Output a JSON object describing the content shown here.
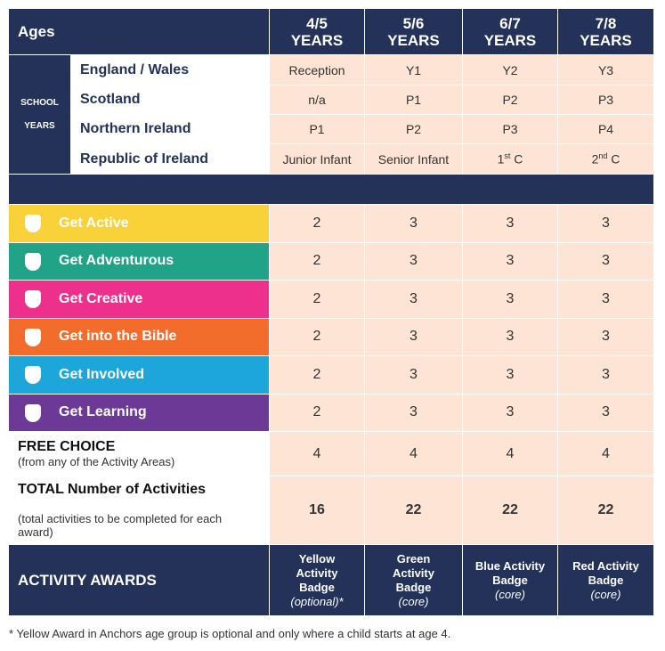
{
  "header": {
    "label": "Ages",
    "columns": [
      [
        "4/5",
        "YEARS"
      ],
      [
        "5/6",
        "YEARS"
      ],
      [
        "6/7",
        "YEARS"
      ],
      [
        "7/8",
        "YEARS"
      ]
    ]
  },
  "school_years": {
    "label_lines": [
      "SCHOOL",
      "YEARS"
    ],
    "rows": [
      {
        "name": "England / Wales",
        "values": [
          "Reception",
          "Y1",
          "Y2",
          "Y3"
        ]
      },
      {
        "name": "Scotland",
        "values": [
          "n/a",
          "P1",
          "P2",
          "P3"
        ]
      },
      {
        "name": "Northern Ireland",
        "values": [
          "P1",
          "P2",
          "P3",
          "P4"
        ]
      },
      {
        "name": "Republic of Ireland",
        "values": [
          "Junior Infant",
          "Senior Infant",
          {
            "text": "1",
            "sup": "st",
            "suffix": " C"
          },
          {
            "text": "2",
            "sup": "nd",
            "suffix": " C"
          }
        ]
      }
    ]
  },
  "activities": [
    {
      "name": "Get Active",
      "color": "#f9d23a",
      "values": [
        2,
        3,
        3,
        3
      ]
    },
    {
      "name": "Get Adventurous",
      "color": "#20a386",
      "values": [
        2,
        3,
        3,
        3
      ]
    },
    {
      "name": "Get Creative",
      "color": "#ec308b",
      "values": [
        2,
        3,
        3,
        3
      ]
    },
    {
      "name": "Get into the Bible",
      "color": "#f26d2b",
      "values": [
        2,
        3,
        3,
        3
      ]
    },
    {
      "name": "Get Involved",
      "color": "#1ca6d9",
      "values": [
        2,
        3,
        3,
        3
      ]
    },
    {
      "name": "Get Learning",
      "color": "#6d3996",
      "values": [
        2,
        3,
        3,
        3
      ]
    }
  ],
  "free_choice": {
    "title": "FREE CHOICE",
    "subtitle": "(from any of the Activity Areas)",
    "values": [
      4,
      4,
      4,
      4
    ]
  },
  "total": {
    "title": "TOTAL Number of Activities",
    "subtitle": "(total activities to be completed for each award)",
    "values": [
      16,
      22,
      22,
      22
    ]
  },
  "awards": {
    "title": "ACTIVITY AWARDS",
    "items": [
      {
        "name": "Yellow Activity Badge",
        "note": "(optional)*"
      },
      {
        "name": "Green Activity Badge",
        "note": "(core)"
      },
      {
        "name": "Blue Activity Badge",
        "note": "(core)"
      },
      {
        "name": "Red Activity Badge",
        "note": "(core)"
      }
    ]
  },
  "footnote": "* Yellow Award in Anchors age group is optional and only where a child starts at age 4."
}
